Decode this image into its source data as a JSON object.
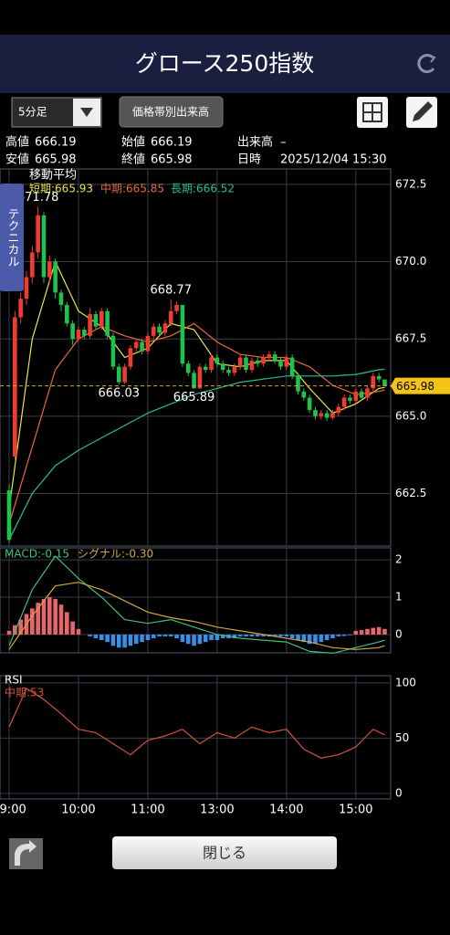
{
  "header": {
    "title": "グロース250指数"
  },
  "toolbar": {
    "interval": "5分足",
    "volume_profile": "価格帯別出来高"
  },
  "info": {
    "rows": [
      [
        {
          "label": "高値",
          "value": 666.19
        },
        {
          "label": "始値",
          "value": 666.19
        },
        {
          "label": "出来高",
          "value": "–"
        }
      ],
      [
        {
          "label": "安値",
          "value": 665.98
        },
        {
          "label": "終値",
          "value": 665.98
        },
        {
          "label": "日時",
          "value": "2025/12/04 15:30"
        }
      ]
    ]
  },
  "side_tab": "テクニカル",
  "footer": {
    "close": "閉じる"
  },
  "chart_data": [
    {
      "type": "candlestick",
      "legend_title": "移動平均",
      "up_color": "#f03c2e",
      "down_color": "#1fc24a",
      "ylim": [
        660.8,
        673.0
      ],
      "yticks": [
        672.5,
        {
          "value": 670,
          "label": "670.0"
        },
        667.5,
        {
          "value": 665,
          "label": "665.0"
        },
        662.5
      ],
      "open": [
        662.6,
        663.7,
        668.2,
        668.8,
        669.5,
        670.3,
        671.5,
        669.5,
        670.0,
        669.0,
        668.6,
        668.0,
        667.5,
        667.8,
        667.6,
        668.3,
        667.9,
        668.4,
        667.6,
        666.6,
        666.1,
        666.6,
        667.2,
        667.4,
        667.1,
        667.6,
        667.9,
        667.7,
        668.0,
        668.4,
        668.6,
        666.7,
        666.4,
        665.9,
        666.6,
        666.5,
        666.9,
        666.7,
        666.5,
        666.4,
        666.6,
        666.9,
        666.5,
        666.8,
        666.7,
        666.9,
        667.0,
        666.8,
        666.6,
        666.9,
        666.3,
        665.8,
        665.6,
        665.2,
        665.0,
        665.1,
        664.95,
        665.1,
        665.3,
        665.6,
        665.5,
        665.8,
        665.6,
        665.9,
        666.3,
        666.19
      ],
      "high": [
        662.8,
        668.4,
        669.0,
        669.7,
        670.5,
        671.78,
        671.6,
        670.2,
        670.1,
        669.1,
        668.7,
        668.1,
        667.9,
        667.9,
        668.5,
        668.4,
        668.5,
        668.5,
        667.7,
        666.7,
        666.7,
        667.3,
        667.5,
        667.5,
        667.7,
        668.0,
        668.0,
        668.1,
        668.77,
        668.7,
        668.6,
        666.8,
        666.5,
        666.7,
        666.7,
        667.0,
        667.0,
        666.8,
        666.6,
        666.7,
        667.0,
        667.0,
        666.9,
        666.9,
        667.0,
        667.1,
        667.1,
        666.9,
        667.0,
        667.0,
        666.4,
        665.9,
        665.7,
        665.3,
        665.2,
        665.2,
        665.2,
        665.4,
        665.7,
        665.7,
        665.9,
        665.9,
        666.0,
        666.4,
        666.4,
        666.19
      ],
      "low": [
        660.9,
        663.6,
        668.0,
        668.6,
        669.3,
        670.1,
        669.3,
        669.3,
        668.8,
        668.4,
        667.9,
        667.3,
        667.4,
        667.5,
        667.5,
        667.8,
        667.8,
        667.5,
        666.5,
        666.03,
        666.05,
        666.5,
        667.1,
        667.0,
        667.0,
        667.5,
        667.6,
        667.6,
        667.9,
        668.3,
        666.6,
        666.3,
        665.89,
        665.9,
        666.4,
        666.4,
        666.6,
        666.4,
        666.3,
        666.3,
        666.5,
        666.4,
        666.4,
        666.6,
        666.6,
        666.8,
        666.7,
        666.5,
        666.5,
        666.2,
        665.7,
        665.5,
        665.1,
        664.9,
        664.9,
        664.85,
        664.9,
        665.0,
        665.2,
        665.4,
        665.4,
        665.5,
        665.5,
        665.8,
        666.1,
        665.98
      ],
      "close": [
        661.0,
        668.2,
        668.8,
        669.5,
        670.3,
        671.5,
        669.5,
        670.0,
        669.0,
        668.6,
        668.0,
        667.5,
        667.8,
        667.6,
        668.3,
        667.9,
        668.4,
        667.6,
        666.6,
        666.1,
        666.6,
        667.2,
        667.4,
        667.1,
        667.6,
        667.9,
        667.7,
        668.0,
        668.4,
        668.6,
        666.7,
        666.4,
        665.9,
        666.6,
        666.5,
        666.9,
        666.7,
        666.5,
        666.4,
        666.6,
        666.9,
        666.5,
        666.8,
        666.7,
        666.9,
        667.0,
        666.8,
        666.6,
        666.9,
        666.3,
        665.8,
        665.6,
        665.2,
        665.0,
        665.1,
        664.95,
        665.1,
        665.3,
        665.6,
        665.5,
        665.8,
        665.6,
        665.9,
        666.3,
        666.19,
        665.98
      ],
      "lines": [
        {
          "name": "短期:665.93",
          "color": "#e6e84a",
          "x": [
            0,
            4,
            8,
            12,
            16,
            20,
            24,
            28,
            32,
            36,
            40,
            44,
            48,
            52,
            56,
            60,
            64,
            65
          ],
          "values": [
            662.0,
            667.5,
            670.0,
            668.4,
            667.9,
            666.9,
            667.2,
            668.0,
            667.8,
            666.7,
            666.6,
            666.8,
            666.8,
            665.9,
            665.1,
            665.4,
            665.9,
            665.93
          ]
        },
        {
          "name": "中期:665.85",
          "color": "#e8683e",
          "x": [
            0,
            4,
            8,
            12,
            16,
            20,
            24,
            28,
            32,
            36,
            40,
            44,
            48,
            52,
            56,
            60,
            64,
            65
          ],
          "values": [
            661.5,
            664.0,
            666.5,
            667.5,
            667.9,
            667.6,
            667.4,
            667.6,
            668.0,
            667.4,
            667.0,
            666.9,
            666.9,
            666.6,
            666.0,
            665.7,
            665.8,
            665.85
          ]
        },
        {
          "name": "長期:666.52",
          "color": "#2bbf8a",
          "x": [
            0,
            4,
            8,
            12,
            16,
            20,
            24,
            28,
            32,
            36,
            40,
            44,
            48,
            52,
            56,
            60,
            64,
            65
          ],
          "values": [
            661.0,
            662.5,
            663.4,
            663.9,
            664.3,
            664.7,
            665.1,
            665.4,
            665.7,
            665.9,
            666.1,
            666.2,
            666.3,
            666.3,
            666.3,
            666.35,
            666.5,
            666.52
          ]
        }
      ]
    },
    {
      "type": "macd",
      "ylim": [
        -0.49,
        2.32
      ],
      "yticks": [
        0,
        1,
        2
      ],
      "pos_color": "#e8666a",
      "neg_color": "#3a8ee6",
      "histogram": [
        0.1,
        0.25,
        0.4,
        0.55,
        0.7,
        0.85,
        0.95,
        1.0,
        0.95,
        0.8,
        0.6,
        0.35,
        0.15,
        0.0,
        -0.05,
        -0.1,
        -0.15,
        -0.2,
        -0.3,
        -0.35,
        -0.35,
        -0.3,
        -0.25,
        -0.2,
        -0.15,
        -0.1,
        -0.05,
        -0.05,
        -0.05,
        -0.1,
        -0.2,
        -0.25,
        -0.3,
        -0.25,
        -0.2,
        -0.15,
        -0.15,
        -0.1,
        -0.1,
        -0.1,
        -0.05,
        -0.05,
        -0.05,
        -0.05,
        -0.05,
        -0.05,
        -0.05,
        -0.05,
        -0.05,
        -0.1,
        -0.15,
        -0.2,
        -0.25,
        -0.25,
        -0.2,
        -0.15,
        -0.1,
        -0.05,
        -0.04,
        -0.02,
        0.1,
        0.12,
        0.15,
        0.18,
        0.2,
        0.15
      ],
      "lines": [
        {
          "name": "MACD:-0.15",
          "color": "#3fc07a",
          "x": [
            0,
            4,
            8,
            12,
            16,
            20,
            24,
            28,
            32,
            36,
            40,
            44,
            48,
            52,
            56,
            60,
            64,
            65
          ],
          "values": [
            -0.3,
            1.2,
            2.1,
            1.5,
            1.0,
            0.4,
            0.3,
            0.4,
            0.2,
            0.0,
            -0.1,
            -0.15,
            -0.2,
            -0.45,
            -0.5,
            -0.35,
            -0.2,
            -0.15
          ]
        },
        {
          "name": "シグナル:-0.30",
          "color": "#d2a640",
          "x": [
            0,
            4,
            8,
            12,
            16,
            20,
            24,
            28,
            32,
            36,
            40,
            44,
            48,
            52,
            56,
            60,
            64,
            65
          ],
          "values": [
            -0.4,
            0.5,
            1.3,
            1.4,
            1.2,
            0.9,
            0.6,
            0.45,
            0.35,
            0.2,
            0.1,
            0.0,
            -0.1,
            -0.2,
            -0.35,
            -0.4,
            -0.35,
            -0.3
          ]
        }
      ]
    },
    {
      "type": "rsi",
      "title": "RSI",
      "ylim": [
        -5,
        106.5
      ],
      "yticks": [
        0,
        50,
        100
      ],
      "xticks": [
        {
          "value": 0,
          "label": "09:00"
        },
        {
          "value": 12,
          "label": "10:00"
        },
        {
          "value": 24,
          "label": "11:00"
        },
        {
          "value": 36,
          "label": "13:00"
        },
        {
          "value": 48,
          "label": "14:00"
        },
        {
          "value": 60,
          "label": "15:00"
        }
      ],
      "lines": [
        {
          "name": "中期:53",
          "color": "#d4503a",
          "x": [
            0,
            3,
            6,
            9,
            12,
            15,
            18,
            21,
            24,
            27,
            30,
            33,
            36,
            39,
            42,
            45,
            48,
            51,
            54,
            57,
            60,
            63,
            65
          ],
          "values": [
            60,
            95,
            85,
            72,
            58,
            55,
            45,
            35,
            48,
            52,
            58,
            45,
            55,
            50,
            60,
            55,
            58,
            40,
            32,
            35,
            42,
            58,
            53
          ]
        }
      ]
    }
  ]
}
